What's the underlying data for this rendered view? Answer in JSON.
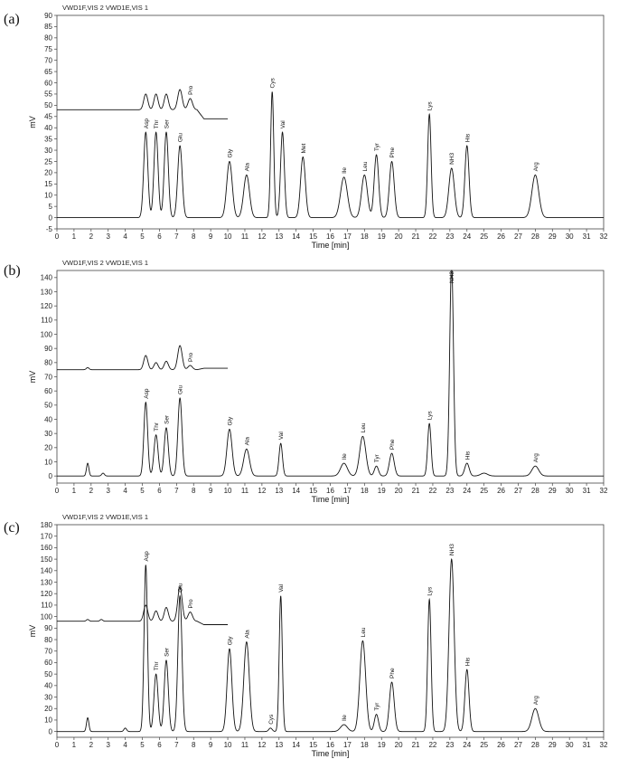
{
  "chart_data": [
    {
      "type": "line",
      "panel_label": "(a)",
      "legend": "VWD1F,VIS 2   VWD1E,VIS 1",
      "xlabel": "Time [min]",
      "ylabel": "mV",
      "xlim": [
        0,
        32
      ],
      "ylim": [
        -5,
        90
      ],
      "yticks": [
        -5,
        0,
        5,
        10,
        15,
        20,
        25,
        30,
        35,
        40,
        45,
        50,
        55,
        60,
        65,
        70,
        75,
        80,
        85,
        90
      ],
      "xticks": [
        0,
        1,
        2,
        3,
        4,
        5,
        6,
        7,
        8,
        9,
        10,
        11,
        12,
        13,
        14,
        15,
        16,
        17,
        18,
        19,
        20,
        21,
        22,
        23,
        24,
        25,
        26,
        27,
        28,
        29,
        30,
        31,
        32
      ],
      "series": [
        {
          "role": "main",
          "baseline": 0,
          "x_range": [
            0,
            32
          ],
          "peaks": [
            {
              "label": "Asp",
              "t": 5.2,
              "h": 38,
              "w": 0.12
            },
            {
              "label": "Thr",
              "t": 5.8,
              "h": 38,
              "w": 0.12
            },
            {
              "label": "Ser",
              "t": 6.4,
              "h": 38,
              "w": 0.12
            },
            {
              "label": "Glu",
              "t": 7.2,
              "h": 32,
              "w": 0.13
            },
            {
              "label": "Gly",
              "t": 10.1,
              "h": 25,
              "w": 0.16
            },
            {
              "label": "Ala",
              "t": 11.1,
              "h": 19,
              "w": 0.17
            },
            {
              "label": "Cys",
              "t": 12.6,
              "h": 56,
              "w": 0.09
            },
            {
              "label": "Val",
              "t": 13.2,
              "h": 38,
              "w": 0.11
            },
            {
              "label": "Met",
              "t": 14.4,
              "h": 27,
              "w": 0.14
            },
            {
              "label": "Ile",
              "t": 16.8,
              "h": 18,
              "w": 0.2
            },
            {
              "label": "Leu",
              "t": 18.0,
              "h": 19,
              "w": 0.17
            },
            {
              "label": "Tyr",
              "t": 18.7,
              "h": 28,
              "w": 0.13
            },
            {
              "label": "Phe",
              "t": 19.6,
              "h": 25,
              "w": 0.14
            },
            {
              "label": "Lys",
              "t": 21.8,
              "h": 46,
              "w": 0.1
            },
            {
              "label": "NH3",
              "t": 23.1,
              "h": 22,
              "w": 0.16
            },
            {
              "label": "His",
              "t": 24.0,
              "h": 32,
              "w": 0.12
            },
            {
              "label": "Arg",
              "t": 28.0,
              "h": 19,
              "w": 0.2
            }
          ]
        },
        {
          "role": "inset",
          "baseline": 48,
          "x_range": [
            0,
            10
          ],
          "end_level": 44,
          "peaks": [
            {
              "label": "",
              "t": 5.2,
              "h": 7,
              "w": 0.12
            },
            {
              "label": "",
              "t": 5.8,
              "h": 7,
              "w": 0.12
            },
            {
              "label": "",
              "t": 6.4,
              "h": 7,
              "w": 0.12
            },
            {
              "label": "",
              "t": 7.2,
              "h": 9,
              "w": 0.13
            },
            {
              "label": "Pro",
              "t": 7.8,
              "h": 5,
              "w": 0.13
            }
          ]
        }
      ]
    },
    {
      "type": "line",
      "panel_label": "(b)",
      "legend": "VWD1F,VIS 2   VWD1E,VIS 1",
      "xlabel": "Time [min]",
      "ylabel": "mV",
      "xlim": [
        0,
        32
      ],
      "ylim": [
        -5,
        145
      ],
      "yticks": [
        0,
        10,
        20,
        30,
        40,
        50,
        60,
        70,
        80,
        90,
        100,
        110,
        120,
        130,
        140
      ],
      "xticks": [
        0,
        1,
        2,
        3,
        4,
        5,
        6,
        7,
        8,
        9,
        10,
        11,
        12,
        13,
        14,
        15,
        16,
        17,
        18,
        19,
        20,
        21,
        22,
        23,
        24,
        25,
        26,
        27,
        28,
        29,
        30,
        31,
        32
      ],
      "series": [
        {
          "role": "main",
          "baseline": 0,
          "x_range": [
            0,
            32
          ],
          "peaks": [
            {
              "label": "",
              "t": 1.8,
              "h": 9,
              "w": 0.07
            },
            {
              "label": "",
              "t": 2.7,
              "h": 2,
              "w": 0.08
            },
            {
              "label": "Asp",
              "t": 5.2,
              "h": 52,
              "w": 0.11
            },
            {
              "label": "Thr",
              "t": 5.8,
              "h": 29,
              "w": 0.12
            },
            {
              "label": "Ser",
              "t": 6.4,
              "h": 34,
              "w": 0.12
            },
            {
              "label": "Glu",
              "t": 7.2,
              "h": 55,
              "w": 0.12
            },
            {
              "label": "Gly",
              "t": 10.1,
              "h": 33,
              "w": 0.15
            },
            {
              "label": "Ala",
              "t": 11.1,
              "h": 19,
              "w": 0.17
            },
            {
              "label": "Val",
              "t": 13.1,
              "h": 23,
              "w": 0.1
            },
            {
              "label": "Ile",
              "t": 16.8,
              "h": 9,
              "w": 0.2
            },
            {
              "label": "Leu",
              "t": 17.9,
              "h": 28,
              "w": 0.18
            },
            {
              "label": "Tyr",
              "t": 18.7,
              "h": 7,
              "w": 0.12
            },
            {
              "label": "Phe",
              "t": 19.6,
              "h": 16,
              "w": 0.14
            },
            {
              "label": "Lys",
              "t": 21.8,
              "h": 37,
              "w": 0.1
            },
            {
              "label": "NH3",
              "t": 23.1,
              "h": 150,
              "w": 0.11
            },
            {
              "label": "His",
              "t": 24.0,
              "h": 9,
              "w": 0.13
            },
            {
              "label": "",
              "t": 25.0,
              "h": 2,
              "w": 0.2
            },
            {
              "label": "Arg",
              "t": 28.0,
              "h": 7,
              "w": 0.2
            }
          ]
        },
        {
          "role": "inset",
          "baseline": 75,
          "x_range": [
            0,
            10
          ],
          "end_level": 76,
          "peaks": [
            {
              "label": "",
              "t": 1.8,
              "h": 1.5,
              "w": 0.08
            },
            {
              "label": "",
              "t": 5.2,
              "h": 10,
              "w": 0.12
            },
            {
              "label": "",
              "t": 5.8,
              "h": 5,
              "w": 0.12
            },
            {
              "label": "",
              "t": 6.4,
              "h": 6,
              "w": 0.12
            },
            {
              "label": "",
              "t": 7.2,
              "h": 17,
              "w": 0.13
            },
            {
              "label": "Pro",
              "t": 7.8,
              "h": 3,
              "w": 0.13
            }
          ]
        }
      ]
    },
    {
      "type": "line",
      "panel_label": "(c)",
      "legend": "VWD1F,VIS 2   VWD1E,VIS 1",
      "xlabel": "Time [min]",
      "ylabel": "mV",
      "xlim": [
        0,
        32
      ],
      "ylim": [
        -5,
        180
      ],
      "yticks": [
        0,
        10,
        20,
        30,
        40,
        50,
        60,
        70,
        80,
        90,
        100,
        110,
        120,
        130,
        140,
        150,
        160,
        170,
        180
      ],
      "xticks": [
        0,
        1,
        2,
        3,
        4,
        5,
        6,
        7,
        8,
        9,
        10,
        11,
        12,
        13,
        14,
        15,
        16,
        17,
        18,
        19,
        20,
        21,
        22,
        23,
        24,
        25,
        26,
        27,
        28,
        29,
        30,
        31,
        32
      ],
      "series": [
        {
          "role": "main",
          "baseline": 0,
          "x_range": [
            0,
            32
          ],
          "peaks": [
            {
              "label": "",
              "t": 1.8,
              "h": 12,
              "w": 0.07
            },
            {
              "label": "",
              "t": 4.0,
              "h": 3,
              "w": 0.08
            },
            {
              "label": "Asp",
              "t": 5.2,
              "h": 145,
              "w": 0.1
            },
            {
              "label": "Thr",
              "t": 5.8,
              "h": 50,
              "w": 0.12
            },
            {
              "label": "Ser",
              "t": 6.4,
              "h": 62,
              "w": 0.12
            },
            {
              "label": "Glu",
              "t": 7.2,
              "h": 118,
              "w": 0.12
            },
            {
              "label": "Gly",
              "t": 10.1,
              "h": 72,
              "w": 0.14
            },
            {
              "label": "Ala",
              "t": 11.1,
              "h": 78,
              "w": 0.16
            },
            {
              "label": "Cys",
              "t": 12.5,
              "h": 3,
              "w": 0.1
            },
            {
              "label": "Val",
              "t": 13.1,
              "h": 118,
              "w": 0.09
            },
            {
              "label": "Ile",
              "t": 16.8,
              "h": 6,
              "w": 0.2
            },
            {
              "label": "Leu",
              "t": 17.9,
              "h": 79,
              "w": 0.17
            },
            {
              "label": "Tyr",
              "t": 18.7,
              "h": 15,
              "w": 0.12
            },
            {
              "label": "Phe",
              "t": 19.6,
              "h": 43,
              "w": 0.14
            },
            {
              "label": "Lys",
              "t": 21.8,
              "h": 115,
              "w": 0.1
            },
            {
              "label": "NH3",
              "t": 23.1,
              "h": 150,
              "w": 0.15
            },
            {
              "label": "His",
              "t": 24.0,
              "h": 54,
              "w": 0.12
            },
            {
              "label": "Arg",
              "t": 28.0,
              "h": 20,
              "w": 0.2
            }
          ]
        },
        {
          "role": "inset",
          "baseline": 96,
          "x_range": [
            0,
            10
          ],
          "end_level": 93,
          "peaks": [
            {
              "label": "",
              "t": 1.8,
              "h": 1.5,
              "w": 0.08
            },
            {
              "label": "",
              "t": 2.6,
              "h": 1.5,
              "w": 0.08
            },
            {
              "label": "",
              "t": 5.2,
              "h": 14,
              "w": 0.12
            },
            {
              "label": "",
              "t": 5.8,
              "h": 9,
              "w": 0.12
            },
            {
              "label": "",
              "t": 6.4,
              "h": 12,
              "w": 0.12
            },
            {
              "label": "",
              "t": 7.2,
              "h": 30,
              "w": 0.13
            },
            {
              "label": "Pro",
              "t": 7.8,
              "h": 8,
              "w": 0.13
            }
          ]
        }
      ]
    }
  ]
}
